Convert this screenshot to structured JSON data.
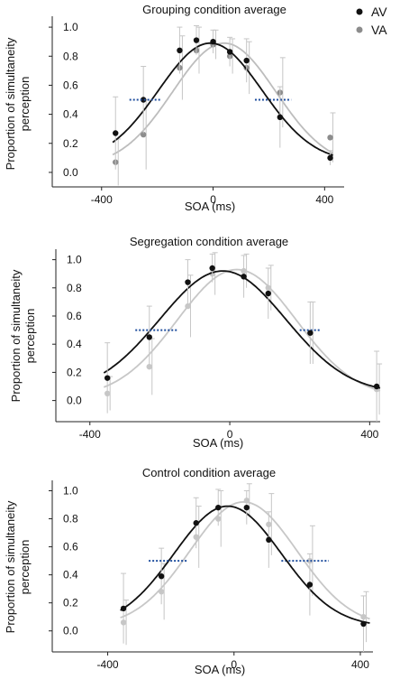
{
  "legend": [
    {
      "label": "AV",
      "color": "#111111"
    },
    {
      "label": "VA",
      "color": "#8c8c8c"
    }
  ],
  "chart_data": [
    {
      "type": "scatter",
      "title": "Grouping condition average",
      "xlabel": "SOA (ms)",
      "ylabel": [
        "Proportion of simultaneity",
        "perception"
      ],
      "xlim": [
        -480,
        470
      ],
      "ylim": [
        -0.1,
        1.1
      ],
      "xticks": [
        -400,
        0,
        400
      ],
      "yticks": [
        0.0,
        0.2,
        0.4,
        0.6,
        0.8,
        1.0
      ],
      "ytick_labels": [
        "0.0",
        "0.2",
        "0.4",
        "0.6",
        "0.8",
        "1.0"
      ],
      "grid": false,
      "legend_position": "top-right",
      "series": [
        {
          "name": "AV",
          "color": "#111111",
          "curve_color": "#111111",
          "x": [
            -350,
            -250,
            -120,
            -60,
            0,
            60,
            120,
            240,
            420
          ],
          "y": [
            0.27,
            0.5,
            0.84,
            0.91,
            0.9,
            0.83,
            0.77,
            0.38,
            0.1
          ],
          "err": [
            0.25,
            0.23,
            0.16,
            0.1,
            0.08,
            0.1,
            0.15,
            0.21,
            0.05
          ],
          "fit": {
            "peak": 0.89,
            "mu": -10,
            "sigma": 185,
            "base": 0.07
          },
          "threshold": {
            "y": 0.5,
            "x": [
              -300,
              -190
            ]
          }
        },
        {
          "name": "VA",
          "color": "#8c8c8c",
          "curve_color": "#bdbdbd",
          "x": [
            -350,
            -250,
            -120,
            -60,
            0,
            60,
            120,
            240,
            420
          ],
          "y": [
            0.07,
            0.26,
            0.72,
            0.84,
            0.88,
            0.8,
            0.72,
            0.55,
            0.24
          ],
          "err": [
            0.16,
            0.24,
            0.22,
            0.16,
            0.1,
            0.12,
            0.18,
            0.24,
            0.17
          ],
          "fit": {
            "peak": 0.89,
            "mu": 40,
            "sigma": 185,
            "base": 0.04
          },
          "threshold": {
            "y": 0.5,
            "x": [
              150,
              280
            ]
          }
        }
      ]
    },
    {
      "type": "scatter",
      "title": "Segregation condition average",
      "xlabel": "SOA (ms)",
      "ylabel": [
        "Proportion of simultaneity",
        "perception"
      ],
      "xlim": [
        -420,
        430
      ],
      "ylim": [
        -0.15,
        1.1
      ],
      "xticks": [
        -400,
        0,
        400
      ],
      "yticks": [
        0.0,
        0.2,
        0.4,
        0.6,
        0.8,
        1.0
      ],
      "ytick_labels": [
        "0.0",
        "0.2",
        "0.4",
        "0.6",
        "0.8",
        "1.0"
      ],
      "grid": false,
      "legend_position": "none",
      "series": [
        {
          "name": "AV",
          "color": "#111111",
          "curve_color": "#111111",
          "x": [
            -350,
            -230,
            -120,
            -50,
            40,
            110,
            230,
            420
          ],
          "y": [
            0.16,
            0.45,
            0.84,
            0.94,
            0.88,
            0.76,
            0.48,
            0.1
          ],
          "err": [
            0.25,
            0.22,
            0.16,
            0.1,
            0.15,
            0.18,
            0.22,
            0.25
          ],
          "fit": {
            "peak": 0.92,
            "mu": -20,
            "sigma": 180,
            "base": 0.05
          },
          "threshold": {
            "y": 0.5,
            "x": [
              -270,
              -150
            ]
          }
        },
        {
          "name": "VA",
          "color": "#c7c7c7",
          "curve_color": "#c7c7c7",
          "x": [
            -350,
            -230,
            -120,
            -50,
            40,
            110,
            230,
            420
          ],
          "y": [
            0.05,
            0.24,
            0.67,
            0.9,
            0.92,
            0.8,
            0.48,
            0.08
          ],
          "err": [
            0.12,
            0.2,
            0.22,
            0.15,
            0.12,
            0.16,
            0.22,
            0.18
          ],
          "fit": {
            "peak": 0.93,
            "mu": 20,
            "sigma": 170,
            "base": 0.02
          },
          "threshold": {
            "y": 0.5,
            "x": [
              200,
              260
            ]
          }
        }
      ]
    },
    {
      "type": "scatter",
      "title": "Control condition average",
      "xlabel": "SOA (ms)",
      "ylabel": [
        "Proportion of simultaneity",
        "perception"
      ],
      "xlim": [
        -490,
        440
      ],
      "ylim": [
        -0.15,
        1.1
      ],
      "xticks": [
        -400,
        0,
        400
      ],
      "xtick_labels": [
        "-400",
        "0",
        "400"
      ],
      "yticks": [
        0.0,
        0.2,
        0.4,
        0.6,
        0.8,
        1.0
      ],
      "ytick_labels": [
        "0.0",
        "0.2",
        "0.4",
        "0.6",
        "0.8",
        "1.0"
      ],
      "grid": false,
      "legend_position": "none",
      "series": [
        {
          "name": "AV",
          "color": "#111111",
          "curve_color": "#111111",
          "x": [
            -350,
            -230,
            -120,
            -50,
            40,
            110,
            240,
            410
          ],
          "y": [
            0.16,
            0.39,
            0.77,
            0.88,
            0.88,
            0.65,
            0.33,
            0.05
          ],
          "err": [
            0.25,
            0.2,
            0.18,
            0.13,
            0.12,
            0.2,
            0.22,
            0.2
          ],
          "fit": {
            "peak": 0.89,
            "mu": -20,
            "sigma": 170,
            "base": 0.03
          },
          "threshold": {
            "y": 0.5,
            "x": [
              -270,
              -150
            ]
          }
        },
        {
          "name": "VA",
          "color": "#c7c7c7",
          "curve_color": "#c7c7c7",
          "x": [
            -350,
            -230,
            -120,
            -50,
            40,
            110,
            240,
            410
          ],
          "y": [
            0.06,
            0.28,
            0.67,
            0.8,
            0.93,
            0.76,
            0.5,
            0.1
          ],
          "err": [
            0.16,
            0.2,
            0.22,
            0.2,
            0.12,
            0.22,
            0.25,
            0.18
          ],
          "fit": {
            "peak": 0.92,
            "mu": 30,
            "sigma": 170,
            "base": 0.03
          },
          "threshold": {
            "y": 0.5,
            "x": [
              150,
              300
            ]
          }
        }
      ]
    }
  ]
}
